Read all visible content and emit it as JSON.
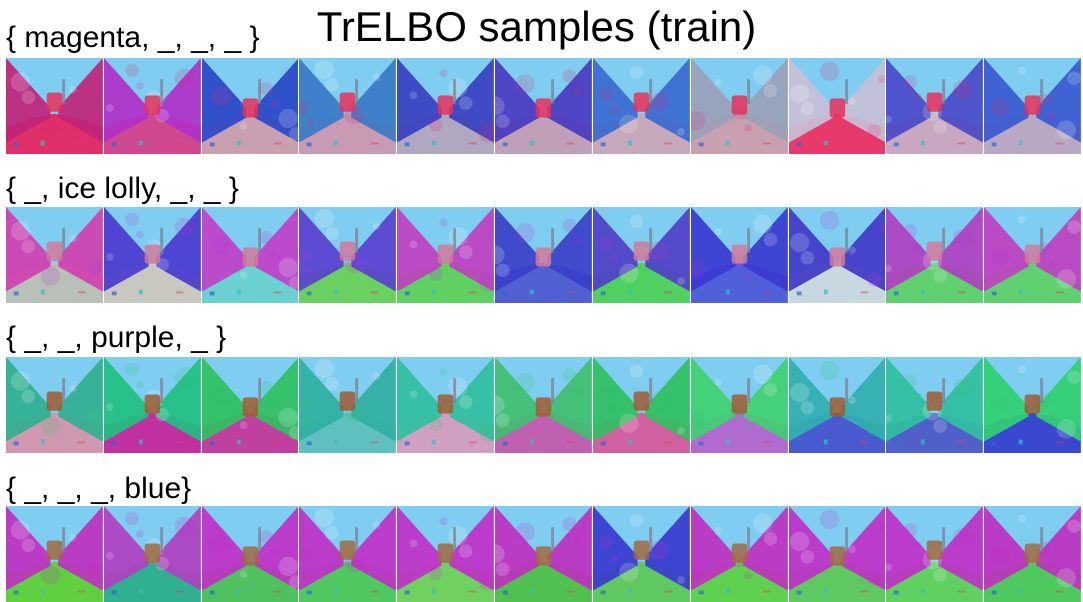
{
  "title": "TrELBO samples (train)",
  "rows": [
    {
      "label": "{ magenta, _, _, _ }",
      "wall": "#e0207a",
      "object": "#e8305a",
      "floor": "#d84a7a",
      "sky": "#7fcdf0",
      "variants": [
        "#c0247a",
        "#b030c8",
        "#2a46c8",
        "#3a7ac8",
        "#3840c0",
        "#4a3ac0",
        "#3a6ad0",
        "#9aa0b8",
        "#c8c0d8",
        "#4a4ac8",
        "#3a5ad0"
      ],
      "floors": [
        "#e0306a",
        "#d04890",
        "#c8a0b0",
        "#c89ab4",
        "#b0a8c0",
        "#c0a0b8",
        "#c6a8bc",
        "#c8a0b0",
        "#e83a6a",
        "#c8a8c0",
        "#b8a8c4"
      ]
    },
    {
      "label": "{ _, ice lolly, _, _ }",
      "wall": "#b030d8",
      "object": "#d07a9a",
      "floor": "#b0b8b8",
      "sky": "#7fcdf0",
      "variants": [
        "#d040b0",
        "#4a3ad0",
        "#c040c8",
        "#5a40d0",
        "#c040c0",
        "#3a40c8",
        "#5040c8",
        "#3a3ad0",
        "#4038c8",
        "#b040c0",
        "#c040c0"
      ],
      "floors": [
        "#b8c0b8",
        "#c8c8c0",
        "#6ad0d0",
        "#6ad060",
        "#60d060",
        "#5060d0",
        "#50d060",
        "#5060d8",
        "#c8d8e0",
        "#60d070",
        "#60d070"
      ]
    },
    {
      "label": "{ _, _, purple, _ }",
      "wall": "#30c070",
      "object": "#a05a30",
      "floor": "#d070a0",
      "sky": "#7fcdf0",
      "variants": [
        "#30b090",
        "#20c080",
        "#30c060",
        "#30b0a0",
        "#30c0a0",
        "#40c070",
        "#30c060",
        "#40d070",
        "#30b0b0",
        "#30c0a0",
        "#30d070"
      ],
      "floors": [
        "#d098b0",
        "#c030a0",
        "#c040a0",
        "#60c0c0",
        "#d0a0c0",
        "#c060b0",
        "#d060a0",
        "#b06ad0",
        "#4a5ad0",
        "#5060c8",
        "#3a48d0"
      ]
    },
    {
      "label": "{ _, _, _, blue}",
      "wall": "#c028c8",
      "object": "#a06a40",
      "floor": "#60d040",
      "sky": "#7fcdf0",
      "variants": [
        "#c030c0",
        "#b040c0",
        "#c030c8",
        "#c030c8",
        "#c030c8",
        "#c030c0",
        "#3a3ad0",
        "#c030c0",
        "#c030c8",
        "#c030c8",
        "#c030c0"
      ],
      "floors": [
        "#60d040",
        "#30b090",
        "#50c060",
        "#50c860",
        "#70d060",
        "#50c050",
        "#60c860",
        "#60d050",
        "#60c860",
        "#60d060",
        "#50c860"
      ]
    }
  ]
}
